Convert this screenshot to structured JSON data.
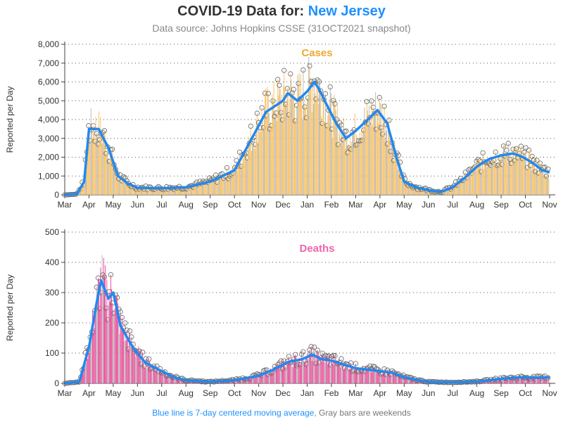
{
  "header": {
    "title_prefix": "COVID-19 Data for: ",
    "title_place": "New Jersey",
    "subtitle": "Data source: Johns Hopkins CSSE (31OCT2021 snapshot)"
  },
  "footnote": {
    "part1": "Blue line is 7-day centered moving average",
    "part2": ", Gray bars are weekends"
  },
  "colors": {
    "cases_bar": "#f2b34a",
    "cases_bar_fill": "#f6c36b",
    "deaths_bar": "#e8559e",
    "moving_average": "#2288ee",
    "marker": "#666666",
    "cases_label": "#f0a830",
    "deaths_label": "#ee66aa"
  },
  "chart_data": [
    {
      "type": "bar",
      "title": "Cases",
      "ylabel": "Reported per Day",
      "ylim": [
        0,
        8000
      ],
      "yticks": [
        "0",
        "1,000",
        "2,000",
        "3,000",
        "4,000",
        "5,000",
        "6,000",
        "7,000",
        "8,000"
      ],
      "xticks": [
        "Mar",
        "Apr",
        "May",
        "Jun",
        "Jul",
        "Aug",
        "Sep",
        "Oct",
        "Nov",
        "Dec",
        "Jan",
        "Feb",
        "Mar",
        "Apr",
        "May",
        "Jun",
        "Jul",
        "Aug",
        "Sep",
        "Oct",
        "Nov"
      ],
      "grid": true,
      "moving_average_anchors": [
        [
          0,
          0
        ],
        [
          0.5,
          30
        ],
        [
          0.8,
          700
        ],
        [
          1.0,
          3500
        ],
        [
          1.4,
          3500
        ],
        [
          1.8,
          2500
        ],
        [
          2.2,
          1000
        ],
        [
          2.6,
          600
        ],
        [
          3.0,
          380
        ],
        [
          4.0,
          350
        ],
        [
          5.0,
          400
        ],
        [
          6.0,
          700
        ],
        [
          7.0,
          1300
        ],
        [
          7.8,
          3200
        ],
        [
          8.3,
          4400
        ],
        [
          9.0,
          5000
        ],
        [
          9.2,
          5400
        ],
        [
          9.6,
          5000
        ],
        [
          10.0,
          5500
        ],
        [
          10.3,
          6000
        ],
        [
          10.5,
          5600
        ],
        [
          10.8,
          4800
        ],
        [
          11.2,
          3800
        ],
        [
          11.6,
          3000
        ],
        [
          12.0,
          3400
        ],
        [
          12.5,
          4000
        ],
        [
          12.9,
          4500
        ],
        [
          13.3,
          3800
        ],
        [
          13.7,
          1900
        ],
        [
          14.0,
          700
        ],
        [
          14.5,
          400
        ],
        [
          15.0,
          250
        ],
        [
          15.5,
          150
        ],
        [
          16.0,
          400
        ],
        [
          16.5,
          900
        ],
        [
          17.0,
          1500
        ],
        [
          17.5,
          1900
        ],
        [
          18.0,
          2100
        ],
        [
          18.5,
          2200
        ],
        [
          18.9,
          2000
        ],
        [
          19.3,
          1700
        ],
        [
          19.7,
          1300
        ],
        [
          20.0,
          1200
        ]
      ]
    },
    {
      "type": "bar",
      "title": "Deaths",
      "ylabel": "Reported per Day",
      "ylim": [
        0,
        500
      ],
      "yticks": [
        "0",
        "100",
        "200",
        "300",
        "400",
        "500"
      ],
      "xticks": [
        "Mar",
        "Apr",
        "May",
        "Jun",
        "Jul",
        "Aug",
        "Sep",
        "Oct",
        "Nov",
        "Dec",
        "Jan",
        "Feb",
        "Mar",
        "Apr",
        "May",
        "Jun",
        "Jul",
        "Aug",
        "Sep",
        "Oct",
        "Nov"
      ],
      "grid": true,
      "moving_average_anchors": [
        [
          0,
          0
        ],
        [
          0.6,
          5
        ],
        [
          1.0,
          120
        ],
        [
          1.3,
          260
        ],
        [
          1.5,
          340
        ],
        [
          1.8,
          280
        ],
        [
          2.0,
          300
        ],
        [
          2.3,
          190
        ],
        [
          2.8,
          120
        ],
        [
          3.3,
          70
        ],
        [
          4.0,
          40
        ],
        [
          4.5,
          20
        ],
        [
          5.0,
          10
        ],
        [
          6.0,
          5
        ],
        [
          7.0,
          10
        ],
        [
          8.0,
          25
        ],
        [
          8.6,
          45
        ],
        [
          9.2,
          70
        ],
        [
          9.8,
          80
        ],
        [
          10.2,
          95
        ],
        [
          10.6,
          80
        ],
        [
          11.0,
          75
        ],
        [
          11.6,
          60
        ],
        [
          12.0,
          50
        ],
        [
          12.5,
          45
        ],
        [
          13.0,
          40
        ],
        [
          13.5,
          35
        ],
        [
          14.0,
          20
        ],
        [
          14.6,
          10
        ],
        [
          15.0,
          5
        ],
        [
          16.0,
          3
        ],
        [
          17.0,
          6
        ],
        [
          17.5,
          10
        ],
        [
          18.0,
          15
        ],
        [
          18.5,
          18
        ],
        [
          19.0,
          20
        ],
        [
          19.5,
          18
        ],
        [
          20.0,
          20
        ]
      ]
    }
  ]
}
